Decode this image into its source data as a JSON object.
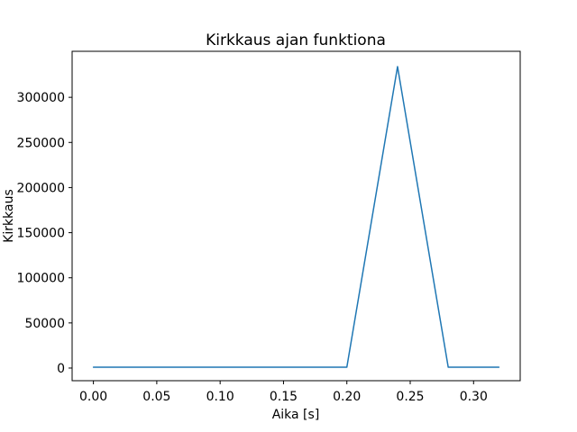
{
  "chart_data": {
    "type": "line",
    "title": "Kirkkaus ajan funktiona",
    "xlabel": "Aika [s]",
    "ylabel": "Kirkkaus",
    "x": [
      0.0,
      0.04,
      0.08,
      0.12,
      0.16,
      0.2,
      0.24,
      0.28,
      0.32
    ],
    "y": [
      1000,
      1000,
      1000,
      1000,
      1000,
      1000,
      334000,
      1000,
      1000
    ],
    "xlim": [
      -0.0168,
      0.3368
    ],
    "ylim": [
      -14000,
      351000
    ],
    "xtick_values": [
      0.0,
      0.05,
      0.1,
      0.15,
      0.2,
      0.25,
      0.3
    ],
    "xtick_labels": [
      "0.00",
      "0.05",
      "0.10",
      "0.15",
      "0.20",
      "0.25",
      "0.30"
    ],
    "ytick_values": [
      0,
      50000,
      100000,
      150000,
      200000,
      250000,
      300000
    ],
    "ytick_labels": [
      "0",
      "50000",
      "100000",
      "150000",
      "200000",
      "250000",
      "300000"
    ],
    "grid": false,
    "legend": false,
    "colors": {
      "line": "#1f77b4",
      "frame": "#000000",
      "text": "#000000",
      "background": "#ffffff"
    }
  }
}
